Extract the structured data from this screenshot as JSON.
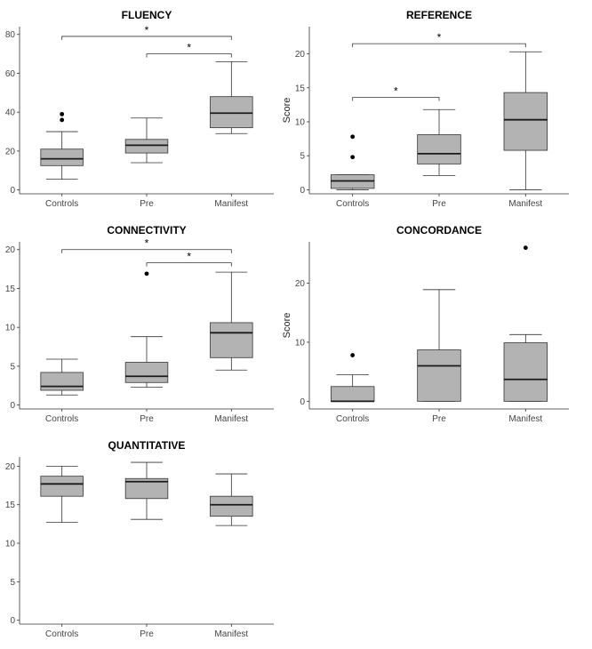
{
  "chart_data": [
    {
      "type": "boxplot",
      "title": "FLUENCY",
      "ylabel": "",
      "categories": [
        "Controls",
        "Pre",
        "Manifest"
      ],
      "ylim": [
        -2,
        84
      ],
      "yticks": [
        0,
        20,
        40,
        60,
        80
      ],
      "boxes": [
        {
          "category": "Controls",
          "min": 5.5,
          "q1": 12.5,
          "median": 16,
          "q3": 21,
          "max": 30,
          "outliers": [
            36,
            39
          ]
        },
        {
          "category": "Pre",
          "min": 14,
          "q1": 19,
          "median": 23,
          "q3": 26,
          "max": 37,
          "outliers": []
        },
        {
          "category": "Manifest",
          "min": 29,
          "q1": 32,
          "median": 39.5,
          "q3": 48,
          "max": 66,
          "outliers": []
        }
      ],
      "significance": [
        {
          "from": "Controls",
          "to": "Manifest",
          "y": 79,
          "label": "*"
        },
        {
          "from": "Pre",
          "to": "Manifest",
          "y": 70,
          "label": "*"
        }
      ]
    },
    {
      "type": "boxplot",
      "title": "REFERENCE",
      "ylabel": "Score",
      "categories": [
        "Controls",
        "Pre",
        "Manifest"
      ],
      "ylim": [
        -0.6,
        24
      ],
      "yticks": [
        0,
        5,
        10,
        15,
        20
      ],
      "boxes": [
        {
          "category": "Controls",
          "min": 0,
          "q1": 0.2,
          "median": 1.3,
          "q3": 2.2,
          "max": 2.2,
          "outliers": [
            4.8,
            7.8
          ]
        },
        {
          "category": "Pre",
          "min": 2.1,
          "q1": 3.8,
          "median": 5.3,
          "q3": 8.1,
          "max": 11.8,
          "outliers": []
        },
        {
          "category": "Manifest",
          "min": 0,
          "q1": 5.8,
          "median": 10.3,
          "q3": 14.3,
          "max": 20.3,
          "outliers": []
        }
      ],
      "significance": [
        {
          "from": "Controls",
          "to": "Manifest",
          "y": 21.5,
          "label": "*"
        },
        {
          "from": "Controls",
          "to": "Pre",
          "y": 13.6,
          "label": "*"
        }
      ]
    },
    {
      "type": "boxplot",
      "title": "CONNECTIVITY",
      "ylabel": "",
      "categories": [
        "Controls",
        "Pre",
        "Manifest"
      ],
      "ylim": [
        -0.5,
        21
      ],
      "yticks": [
        0,
        5,
        10,
        15,
        20
      ],
      "boxes": [
        {
          "category": "Controls",
          "min": 1.3,
          "q1": 1.9,
          "median": 2.4,
          "q3": 4.2,
          "max": 5.9,
          "outliers": []
        },
        {
          "category": "Pre",
          "min": 2.3,
          "q1": 2.9,
          "median": 3.7,
          "q3": 5.5,
          "max": 8.8,
          "outliers": [
            16.9
          ]
        },
        {
          "category": "Manifest",
          "min": 4.5,
          "q1": 6.1,
          "median": 9.3,
          "q3": 10.6,
          "max": 17.1,
          "outliers": []
        }
      ],
      "significance": [
        {
          "from": "Controls",
          "to": "Manifest",
          "y": 20,
          "label": "*"
        },
        {
          "from": "Pre",
          "to": "Manifest",
          "y": 18.3,
          "label": "*"
        }
      ]
    },
    {
      "type": "boxplot",
      "title": "CONCORDANCE",
      "ylabel": "Score",
      "categories": [
        "Controls",
        "Pre",
        "Manifest"
      ],
      "ylim": [
        -1.3,
        27
      ],
      "yticks": [
        0,
        10,
        20
      ],
      "boxes": [
        {
          "category": "Controls",
          "min": 0,
          "q1": 0,
          "median": 0,
          "q3": 2.5,
          "max": 4.5,
          "outliers": [
            7.8
          ]
        },
        {
          "category": "Pre",
          "min": 0,
          "q1": 0,
          "median": 6,
          "q3": 8.7,
          "max": 18.9,
          "outliers": []
        },
        {
          "category": "Manifest",
          "min": 0,
          "q1": 0,
          "median": 3.7,
          "q3": 9.9,
          "max": 11.3,
          "outliers": [
            26
          ]
        }
      ],
      "significance": []
    },
    {
      "type": "boxplot",
      "title": "QUANTITATIVE",
      "ylabel": "",
      "categories": [
        "Controls",
        "Pre",
        "Manifest"
      ],
      "ylim": [
        -0.5,
        21.2
      ],
      "yticks": [
        0,
        5,
        10,
        15,
        20
      ],
      "boxes": [
        {
          "category": "Controls",
          "min": 12.7,
          "q1": 16.1,
          "median": 17.7,
          "q3": 18.7,
          "max": 20,
          "outliers": []
        },
        {
          "category": "Pre",
          "min": 13.1,
          "q1": 15.8,
          "median": 18,
          "q3": 18.4,
          "max": 20.5,
          "outliers": []
        },
        {
          "category": "Manifest",
          "min": 12.3,
          "q1": 13.5,
          "median": 15,
          "q3": 16.1,
          "max": 19,
          "outliers": []
        }
      ],
      "significance": []
    }
  ]
}
